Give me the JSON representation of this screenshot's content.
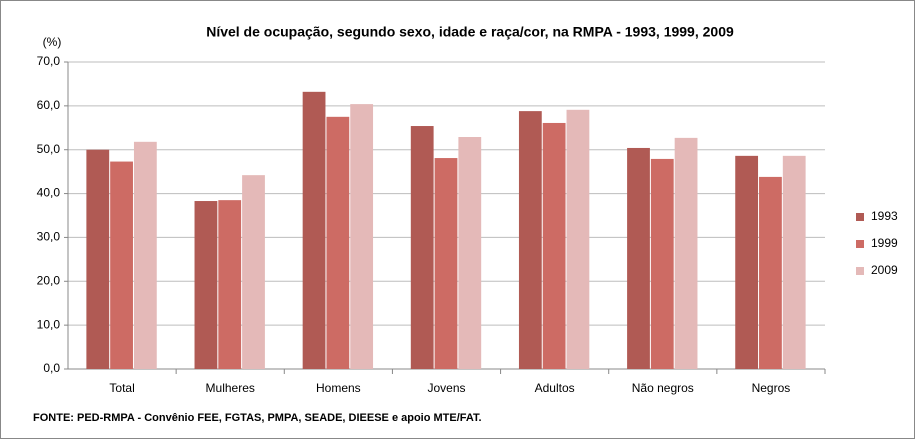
{
  "chart_data": {
    "type": "bar",
    "title": "Nível de ocupação, segundo sexo, idade e raça/cor, na RMPA - 1993, 1999, 2009",
    "y_label": "(%)",
    "source": "FONTE: PED-RMPA - Convênio FEE, FGTAS, PMPA, SEADE, DIEESE e apoio MTE/FAT.",
    "categories": [
      "Total",
      "Mulheres",
      "Homens",
      "Jovens",
      "Adultos",
      "Não negros",
      "Negros"
    ],
    "series": [
      {
        "name": "1993",
        "color": "#b05a54",
        "values": [
          50.0,
          38.3,
          63.2,
          55.4,
          58.8,
          50.4,
          48.6
        ]
      },
      {
        "name": "1999",
        "color": "#cd6b64",
        "values": [
          47.3,
          38.5,
          57.5,
          48.1,
          56.1,
          47.9,
          43.8
        ]
      },
      {
        "name": "2009",
        "color": "#e4b9b8",
        "values": [
          51.8,
          44.2,
          60.4,
          52.9,
          59.1,
          52.7,
          48.6
        ]
      }
    ],
    "ylim": [
      0,
      70
    ],
    "yticks": [
      {
        "value": 0,
        "label": "0,0"
      },
      {
        "value": 10,
        "label": "10,0"
      },
      {
        "value": 20,
        "label": "20,0"
      },
      {
        "value": 30,
        "label": "30,0"
      },
      {
        "value": 40,
        "label": "40,0"
      },
      {
        "value": 50,
        "label": "50,0"
      },
      {
        "value": 60,
        "label": "60,0"
      },
      {
        "value": 70,
        "label": "70,0"
      }
    ],
    "grid": true,
    "legend": "right"
  }
}
